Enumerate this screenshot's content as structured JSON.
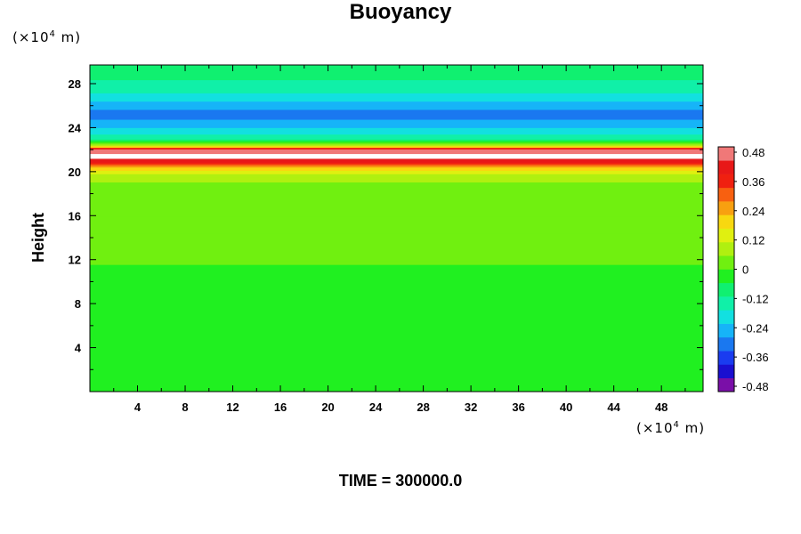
{
  "title": "Buoyancy",
  "y_unit": "(×10",
  "x_unit": "(×10",
  "unit_exp": "4",
  "unit_tail": " m)",
  "ylabel": "Height",
  "footer": "TIME = 300000.0",
  "chart_data": {
    "type": "heatmap",
    "title": "Buoyancy",
    "ylabel": "Height",
    "x_unit": "×10^4 m",
    "y_unit": "×10^4 m",
    "xlim": [
      0,
      51.5
    ],
    "ylim": [
      0,
      29.7
    ],
    "x_ticks": [
      4,
      8,
      12,
      16,
      20,
      24,
      28,
      32,
      36,
      40,
      44,
      48
    ],
    "y_ticks": [
      4,
      8,
      12,
      16,
      20,
      24,
      28
    ],
    "colorbar": {
      "range": [
        -0.48,
        0.48
      ],
      "tick_labels": [
        "0.48",
        "0.36",
        "0.24",
        "0.12",
        "0",
        "-0.12",
        "-0.24",
        "-0.36",
        "-0.48"
      ],
      "colors": [
        "#7a0fa8",
        "#1a0fd0",
        "#1a3cf0",
        "#1a78f0",
        "#16b4f8",
        "#12e0e0",
        "#10f0a8",
        "#10f070",
        "#20f020",
        "#70f010",
        "#b0f010",
        "#e0f010",
        "#f8d810",
        "#f8a010",
        "#f86010",
        "#f02010",
        "#e81818",
        "#f07878"
      ]
    },
    "profile_y": [
      0.5,
      10.0,
      10.5,
      11.0,
      11.5,
      15.0,
      19.5,
      20.3,
      20.9,
      21.5,
      22.0,
      22.4,
      23.0,
      24.0,
      25.2,
      26.5,
      27.5,
      28.5,
      29.7
    ],
    "profile_value": [
      -0.02,
      -0.02,
      -0.04,
      -0.03,
      0.0,
      0.0,
      0.06,
      0.18,
      0.4,
      0.48,
      0.44,
      0.1,
      -0.12,
      -0.22,
      -0.3,
      -0.2,
      -0.14,
      -0.1,
      -0.08
    ],
    "annotations": [
      "TIME = 300000.0"
    ]
  }
}
